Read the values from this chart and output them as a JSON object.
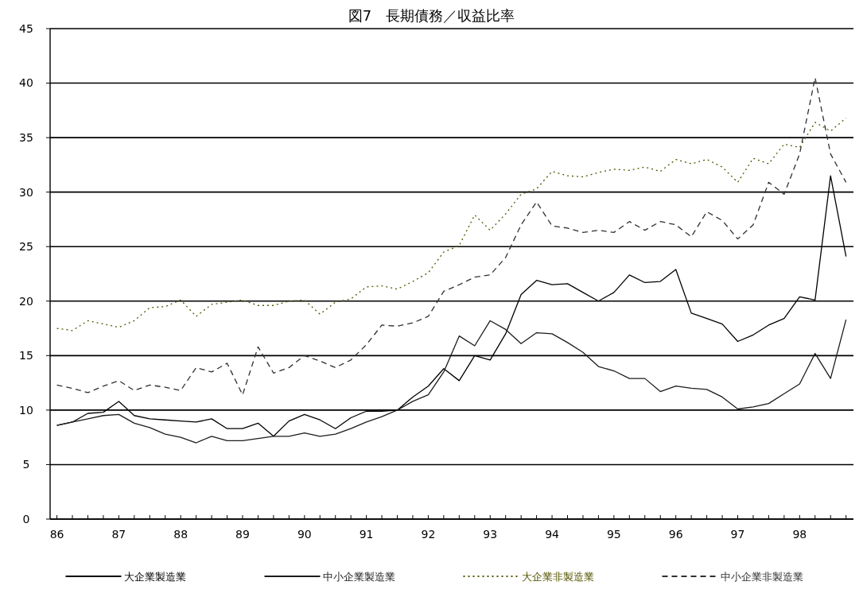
{
  "chart_data": {
    "type": "line",
    "title": "図7　長期債務／収益比率",
    "x": [
      86,
      86.25,
      86.5,
      86.75,
      87,
      87.25,
      87.5,
      87.75,
      88,
      88.25,
      88.5,
      88.75,
      89,
      89.25,
      89.5,
      89.75,
      90,
      90.25,
      90.5,
      90.75,
      91,
      91.25,
      91.5,
      91.75,
      92,
      92.25,
      92.5,
      92.75,
      93,
      93.25,
      93.5,
      93.75,
      94,
      94.25,
      94.5,
      94.75,
      95,
      95.25,
      95.5,
      95.75,
      96,
      96.25,
      96.5,
      96.75,
      97,
      97.25,
      97.5,
      97.75,
      98,
      98.25,
      98.5,
      98.75
    ],
    "series": [
      {
        "name": "大企業製造業",
        "color": "#000000",
        "line_style": "solid",
        "values": [
          8.6,
          8.9,
          9.7,
          9.8,
          10.8,
          9.5,
          9.2,
          9.1,
          9.0,
          8.9,
          9.2,
          8.3,
          8.3,
          8.8,
          7.6,
          9.0,
          9.6,
          9.1,
          8.3,
          9.3,
          9.9,
          9.9,
          10.0,
          11.2,
          12.2,
          13.8,
          12.7,
          15.0,
          14.6,
          17.0,
          20.6,
          21.9,
          21.5,
          21.6,
          20.8,
          20.0,
          20.8,
          22.4,
          21.7,
          21.8,
          22.9,
          18.9,
          18.4,
          17.9,
          16.3,
          16.9,
          17.8,
          18.4,
          20.4,
          20.1,
          31.5,
          24.1
        ]
      },
      {
        "name": "中小企業製造業",
        "color": "#1c1c1c",
        "line_style": "solid",
        "values": [
          8.6,
          8.9,
          9.2,
          9.5,
          9.6,
          8.8,
          8.4,
          7.8,
          7.5,
          7.0,
          7.6,
          7.2,
          7.2,
          7.4,
          7.6,
          7.6,
          7.9,
          7.6,
          7.8,
          8.3,
          8.9,
          9.4,
          10.0,
          10.8,
          11.4,
          13.5,
          16.8,
          15.9,
          18.2,
          17.4,
          16.1,
          17.1,
          17.0,
          16.2,
          15.3,
          14.0,
          13.6,
          12.9,
          12.9,
          11.7,
          12.2,
          12.0,
          11.9,
          11.2,
          10.1,
          10.3,
          10.6,
          11.5,
          12.4,
          15.2,
          12.9,
          18.3
        ]
      },
      {
        "name": "大企業非製造業",
        "color": "#555500",
        "line_style": "dotted",
        "values": [
          17.5,
          17.3,
          18.2,
          17.9,
          17.6,
          18.2,
          19.4,
          19.5,
          20.1,
          18.6,
          19.7,
          19.9,
          20.1,
          19.6,
          19.6,
          20.0,
          20.1,
          18.8,
          19.9,
          20.2,
          21.3,
          21.4,
          21.1,
          21.8,
          22.6,
          24.5,
          25.1,
          27.9,
          26.5,
          28.0,
          29.8,
          30.3,
          31.9,
          31.5,
          31.4,
          31.8,
          32.1,
          32.0,
          32.3,
          31.9,
          33.0,
          32.6,
          33.0,
          32.3,
          30.9,
          33.1,
          32.6,
          34.4,
          34.1,
          36.4,
          35.6,
          36.8
        ]
      },
      {
        "name": "中小企業非製造業",
        "color": "#303030",
        "line_style": "dashed",
        "values": [
          12.3,
          12.0,
          11.6,
          12.2,
          12.7,
          11.8,
          12.3,
          12.1,
          11.8,
          13.9,
          13.5,
          14.3,
          11.4,
          15.8,
          13.4,
          13.9,
          15.0,
          14.5,
          13.9,
          14.6,
          16.0,
          17.8,
          17.7,
          18.0,
          18.6,
          20.9,
          21.5,
          22.2,
          22.4,
          24.0,
          27.0,
          29.1,
          26.9,
          26.7,
          26.3,
          26.5,
          26.3,
          27.3,
          26.5,
          27.3,
          27.0,
          25.9,
          28.2,
          27.4,
          25.7,
          27.0,
          30.9,
          29.8,
          33.5,
          40.5,
          33.5,
          30.9
        ]
      }
    ],
    "xlim": [
      85.89,
      98.87
    ],
    "xticks": [
      86,
      {
        "value": 86.25,
        "label": null
      },
      {
        "value": 86.5,
        "label": null
      },
      {
        "value": 86.75,
        "label": null
      },
      87,
      {
        "value": 87.25,
        "label": null
      },
      {
        "value": 87.5,
        "label": null
      },
      {
        "value": 87.75,
        "label": null
      },
      88,
      {
        "value": 88.25,
        "label": null
      },
      {
        "value": 88.5,
        "label": null
      },
      {
        "value": 88.75,
        "label": null
      },
      89,
      {
        "value": 89.25,
        "label": null
      },
      {
        "value": 89.5,
        "label": null
      },
      {
        "value": 89.75,
        "label": null
      },
      90,
      {
        "value": 90.25,
        "label": null
      },
      {
        "value": 90.5,
        "label": null
      },
      {
        "value": 90.75,
        "label": null
      },
      91,
      {
        "value": 91.25,
        "label": null
      },
      {
        "value": 91.5,
        "label": null
      },
      {
        "value": 91.75,
        "label": null
      },
      92,
      {
        "value": 92.25,
        "label": null
      },
      {
        "value": 92.5,
        "label": null
      },
      {
        "value": 92.75,
        "label": null
      },
      93,
      {
        "value": 93.25,
        "label": null
      },
      {
        "value": 93.5,
        "label": null
      },
      {
        "value": 93.75,
        "label": null
      },
      94,
      {
        "value": 94.25,
        "label": null
      },
      {
        "value": 94.5,
        "label": null
      },
      {
        "value": 94.75,
        "label": null
      },
      95,
      {
        "value": 95.25,
        "label": null
      },
      {
        "value": 95.5,
        "label": null
      },
      {
        "value": 95.75,
        "label": null
      },
      96,
      {
        "value": 96.25,
        "label": null
      },
      {
        "value": 96.5,
        "label": null
      },
      {
        "value": 96.75,
        "label": null
      },
      97,
      {
        "value": 97.25,
        "label": null
      },
      {
        "value": 97.5,
        "label": null
      },
      {
        "value": 97.75,
        "label": null
      },
      98,
      {
        "value": 98.25,
        "label": null
      },
      {
        "value": 98.5,
        "label": null
      },
      {
        "value": 98.75,
        "label": null
      }
    ],
    "ylim": [
      0,
      45
    ],
    "yticks": [
      0,
      5,
      10,
      15,
      20,
      25,
      30,
      35,
      40,
      45
    ],
    "grid": "y",
    "legend": "bottom"
  }
}
